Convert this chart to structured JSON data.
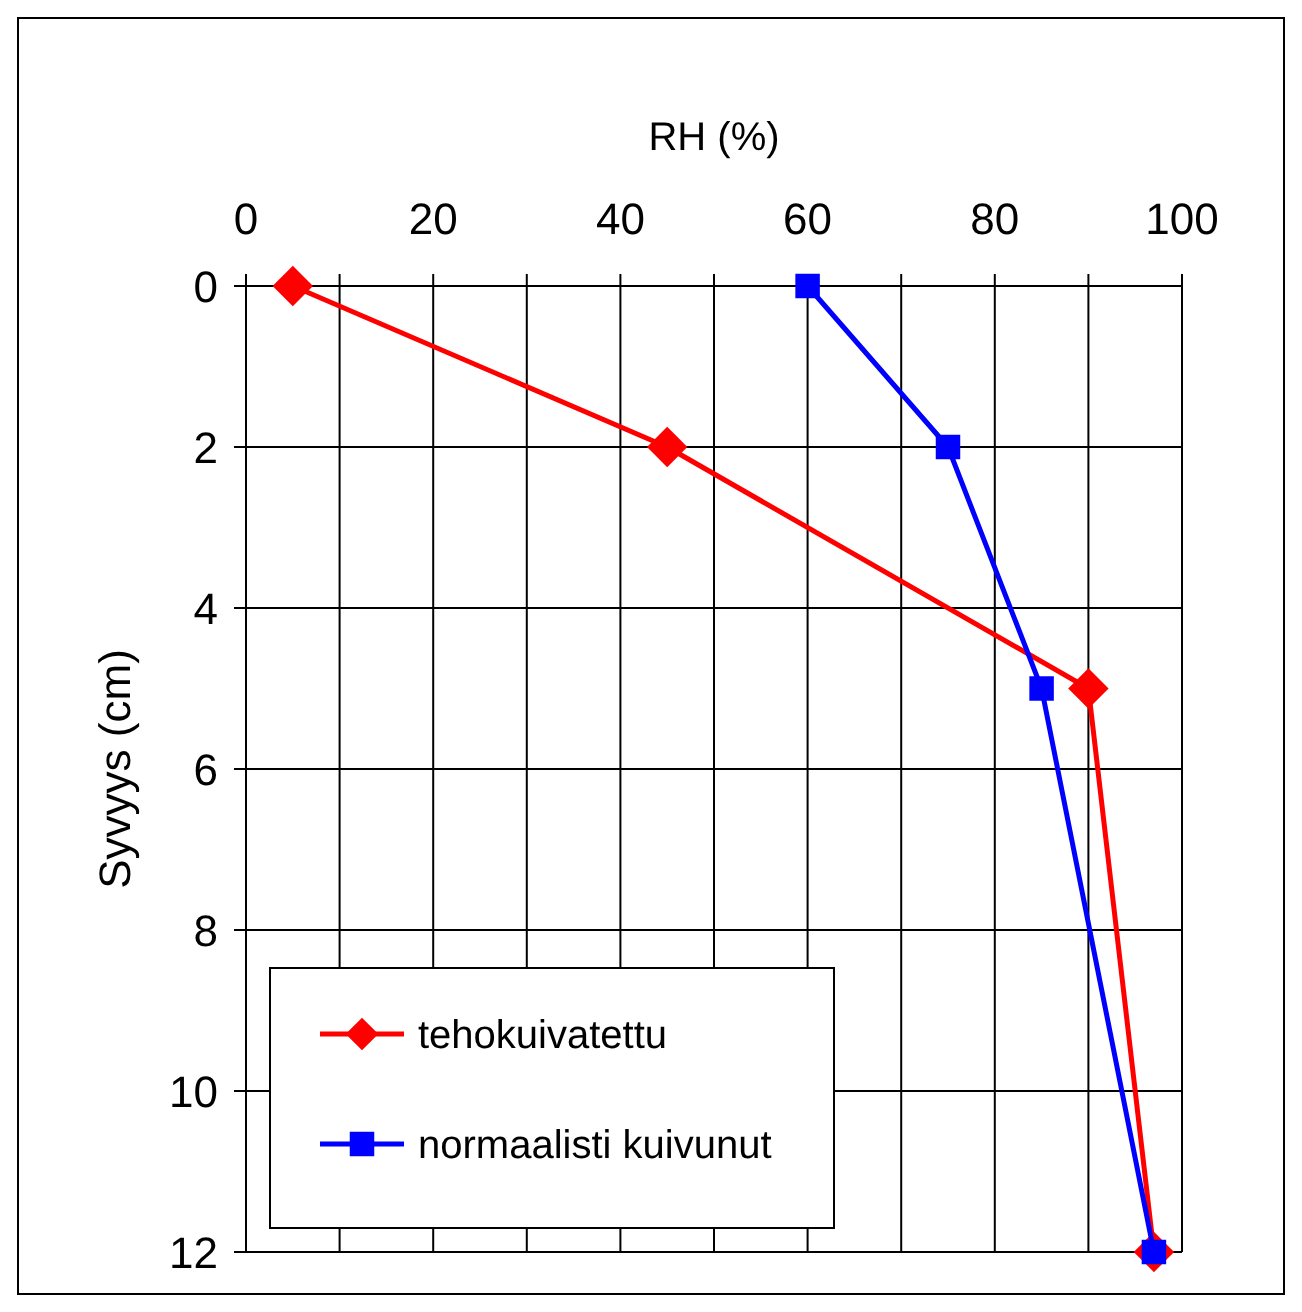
{
  "chart_data": {
    "type": "line",
    "xlabel": "RH (%)",
    "ylabel": "Syvyys (cm)",
    "xlim": [
      0,
      100
    ],
    "xticks": [
      0,
      {
        "value": 10,
        "label": null
      },
      20,
      {
        "value": 30,
        "label": null
      },
      40,
      {
        "value": 50,
        "label": null
      },
      60,
      {
        "value": 70,
        "label": null
      },
      80,
      {
        "value": 90,
        "label": null
      },
      100
    ],
    "ylim": [
      12,
      0
    ],
    "yticks": [
      0,
      2,
      4,
      6,
      8,
      10,
      12
    ],
    "grid": true,
    "legend": "bottom left",
    "line_style": "solid",
    "series": [
      {
        "name": "tehokuivatettu",
        "color": "#ff0000",
        "marker": "diamond",
        "x": [
          5,
          45,
          90,
          97
        ],
        "values": [
          0,
          2,
          5,
          12
        ]
      },
      {
        "name": "normaalisti kuivunut",
        "color": "#0000ff",
        "marker": "square",
        "x": [
          60,
          75,
          85,
          97
        ],
        "values": [
          0,
          2,
          5,
          12
        ]
      }
    ]
  }
}
